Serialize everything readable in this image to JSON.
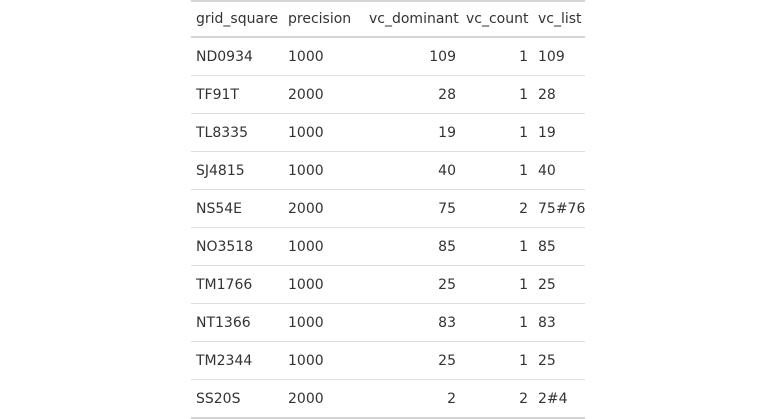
{
  "table": {
    "columns": [
      "grid_square",
      "precision",
      "vc_dominant",
      "vc_count",
      "vc_list"
    ],
    "rows": [
      [
        "ND0934",
        "1000",
        "109",
        "1",
        "109"
      ],
      [
        "TF91T",
        "2000",
        "28",
        "1",
        "28"
      ],
      [
        "TL8335",
        "1000",
        "19",
        "1",
        "19"
      ],
      [
        "SJ4815",
        "1000",
        "40",
        "1",
        "40"
      ],
      [
        "NS54E",
        "2000",
        "75",
        "2",
        "75#76"
      ],
      [
        "NO3518",
        "1000",
        "85",
        "1",
        "85"
      ],
      [
        "TM1766",
        "1000",
        "25",
        "1",
        "25"
      ],
      [
        "NT1366",
        "1000",
        "83",
        "1",
        "83"
      ],
      [
        "TM2344",
        "1000",
        "25",
        "1",
        "25"
      ],
      [
        "SS20S",
        "2000",
        "2",
        "2",
        "2#4"
      ]
    ]
  }
}
